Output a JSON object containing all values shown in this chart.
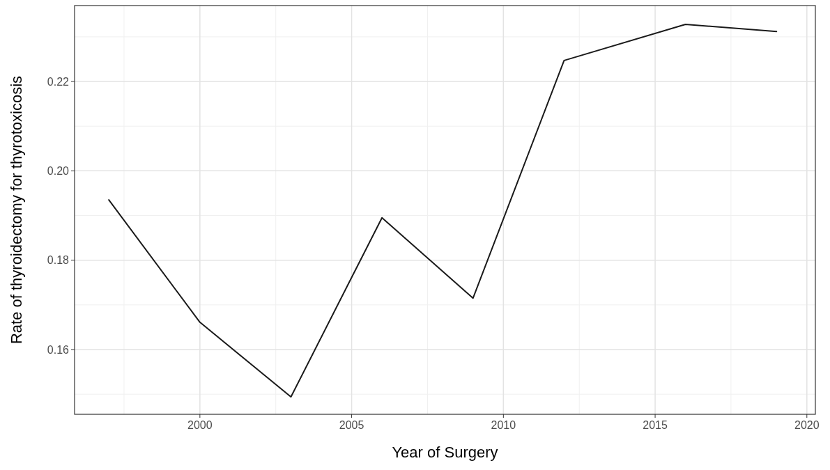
{
  "chart_data": {
    "type": "line",
    "xlabel": "Year of Surgery",
    "ylabel": "Rate of thyroidectomy for thyrotoxicosis",
    "x": [
      1997,
      2000,
      2003,
      2006,
      2009,
      2012,
      2016,
      2019
    ],
    "series": [
      {
        "color": "#1a1a1a",
        "values": [
          0.1935,
          0.1661,
          0.1494,
          0.1895,
          0.1715,
          0.2247,
          0.2328,
          0.2312
        ]
      }
    ],
    "xlim": [
      1995.87,
      2020.28
    ],
    "ylim": [
      0.1455,
      0.237
    ],
    "xticks": [
      2000,
      2005,
      2010,
      2015,
      2020
    ],
    "yticks": [
      {
        "value": 0.16,
        "label": "0.16"
      },
      {
        "value": 0.18,
        "label": "0.18"
      },
      {
        "value": 0.2,
        "label": "0.20"
      },
      {
        "value": 0.22,
        "label": "0.22"
      }
    ],
    "grid": true,
    "marker": "none",
    "line_style": "solid"
  }
}
